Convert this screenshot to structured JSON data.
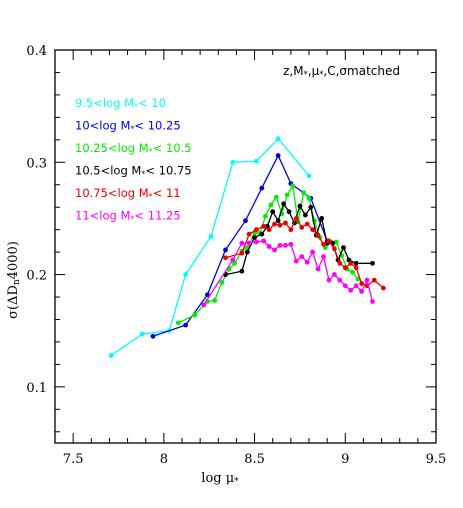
{
  "chart_data": {
    "type": "line",
    "annotation": "z,M",
    "annotation_parts": [
      "z,M",
      "*",
      ",μ",
      "*",
      ",C,σmatched"
    ],
    "xlabel_parts": [
      "log μ",
      "*"
    ],
    "ylabel_parts": [
      "σ(ΔD",
      "n",
      "4000)"
    ],
    "xlim": [
      7.4,
      9.5
    ],
    "ylim": [
      0.05,
      0.4
    ],
    "x_ticks": [
      7.5,
      8,
      8.5,
      9,
      9.5
    ],
    "x_tick_labels": [
      "7.5",
      "8",
      "8.5",
      "9",
      "9.5"
    ],
    "y_ticks": [
      0.1,
      0.2,
      0.3,
      0.4
    ],
    "y_tick_labels": [
      "0.1",
      "0.2",
      "0.3",
      "0.4"
    ],
    "grid": false,
    "legend_position": "top-left",
    "series": [
      {
        "name_parts": [
          "9.5<log M",
          "*",
          "< 10"
        ],
        "color": "#00ffff",
        "x": [
          7.71,
          7.88,
          8.03,
          8.12,
          8.26,
          8.38,
          8.51,
          8.63,
          8.8
        ],
        "y": [
          0.128,
          0.147,
          0.15,
          0.2,
          0.234,
          0.3,
          0.301,
          0.321,
          0.288
        ]
      },
      {
        "name_parts": [
          "10<log M",
          "*",
          "< 10.25"
        ],
        "color": "#0000dd",
        "x": [
          7.94,
          8.12,
          8.24,
          8.34,
          8.45,
          8.54,
          8.63,
          8.7,
          8.81,
          8.9
        ],
        "y": [
          0.145,
          0.155,
          0.182,
          0.222,
          0.248,
          0.277,
          0.306,
          0.281,
          0.268,
          0.23
        ]
      },
      {
        "name_parts": [
          "10.25<log M",
          "*",
          "< 10.5"
        ],
        "color": "#00ee00",
        "x": [
          8.08,
          8.17,
          8.24,
          8.28,
          8.32,
          8.36,
          8.39,
          8.43,
          8.46,
          8.5,
          8.53,
          8.56,
          8.59,
          8.62,
          8.65,
          8.68,
          8.71,
          8.74,
          8.77,
          8.8,
          8.83,
          8.86,
          8.89,
          8.92,
          8.95,
          8.98,
          9.01,
          9.04,
          9.07
        ],
        "y": [
          0.157,
          0.164,
          0.176,
          0.177,
          0.193,
          0.205,
          0.21,
          0.221,
          0.224,
          0.237,
          0.237,
          0.252,
          0.262,
          0.269,
          0.254,
          0.271,
          0.279,
          0.247,
          0.273,
          0.268,
          0.248,
          0.233,
          0.224,
          0.229,
          0.229,
          0.217,
          0.205,
          0.202,
          0.196
        ]
      },
      {
        "name_parts": [
          "10.5<log M",
          "*",
          "< 10.75"
        ],
        "color": "#000000",
        "x": [
          8.34,
          8.43,
          8.46,
          8.5,
          8.54,
          8.57,
          8.6,
          8.63,
          8.66,
          8.69,
          8.72,
          8.75,
          8.78,
          8.81,
          8.84,
          8.87,
          8.9,
          8.93,
          8.96,
          8.99,
          9.02,
          9.06,
          9.15
        ],
        "y": [
          0.2,
          0.203,
          0.22,
          0.233,
          0.236,
          0.243,
          0.256,
          0.248,
          0.263,
          0.256,
          0.246,
          0.261,
          0.253,
          0.26,
          0.235,
          0.25,
          0.228,
          0.228,
          0.213,
          0.224,
          0.213,
          0.21,
          0.21
        ]
      },
      {
        "name_parts": [
          "10.75<log M",
          "*",
          "< 11"
        ],
        "color": "#ee0000",
        "x": [
          8.34,
          8.43,
          8.47,
          8.51,
          8.55,
          8.58,
          8.61,
          8.64,
          8.67,
          8.7,
          8.73,
          8.76,
          8.79,
          8.82,
          8.85,
          8.88,
          8.91,
          8.94,
          8.97,
          9.0,
          9.03,
          9.06,
          9.09,
          9.12,
          9.16,
          9.21
        ],
        "y": [
          0.215,
          0.219,
          0.236,
          0.24,
          0.243,
          0.24,
          0.245,
          0.244,
          0.246,
          0.24,
          0.25,
          0.242,
          0.245,
          0.24,
          0.235,
          0.227,
          0.23,
          0.223,
          0.21,
          0.206,
          0.21,
          0.206,
          0.192,
          0.19,
          0.195,
          0.188
        ]
      },
      {
        "name_parts": [
          "11<log M",
          "*",
          "< 11.25"
        ],
        "color": "#ff00ff",
        "x": [
          8.22,
          8.38,
          8.43,
          8.47,
          8.51,
          8.55,
          8.58,
          8.61,
          8.64,
          8.67,
          8.7,
          8.73,
          8.76,
          8.79,
          8.82,
          8.85,
          8.88,
          8.91,
          8.94,
          8.97,
          9.0,
          9.03,
          9.06,
          9.09,
          9.12,
          9.15
        ],
        "y": [
          0.173,
          0.213,
          0.228,
          0.228,
          0.229,
          0.23,
          0.225,
          0.222,
          0.226,
          0.226,
          0.227,
          0.212,
          0.216,
          0.211,
          0.22,
          0.205,
          0.216,
          0.195,
          0.2,
          0.195,
          0.19,
          0.186,
          0.19,
          0.185,
          0.195,
          0.176
        ]
      }
    ]
  }
}
